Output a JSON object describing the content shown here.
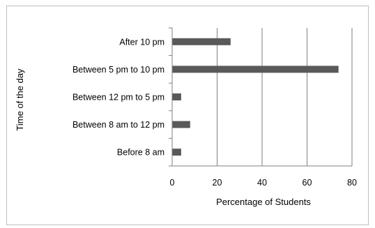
{
  "chart_data": {
    "type": "bar",
    "orientation": "horizontal",
    "categories": [
      "Before 8 am",
      "Between 8 am to 12 pm",
      "Between 12 pm to 5 pm",
      "Between 5 pm to 10 pm",
      "After 10 pm"
    ],
    "values": [
      4,
      8,
      4,
      74,
      26
    ],
    "xlabel": "Percentage of Students",
    "ylabel": "Time of the day",
    "xlim": [
      0,
      80
    ],
    "xticks": [
      "0",
      "20",
      "40",
      "60",
      "80"
    ],
    "grid": "vertical",
    "legend": "none",
    "colors": {
      "bar": "#595959",
      "grid": "#7f7f7f",
      "frame": "#bfbfbf"
    }
  }
}
